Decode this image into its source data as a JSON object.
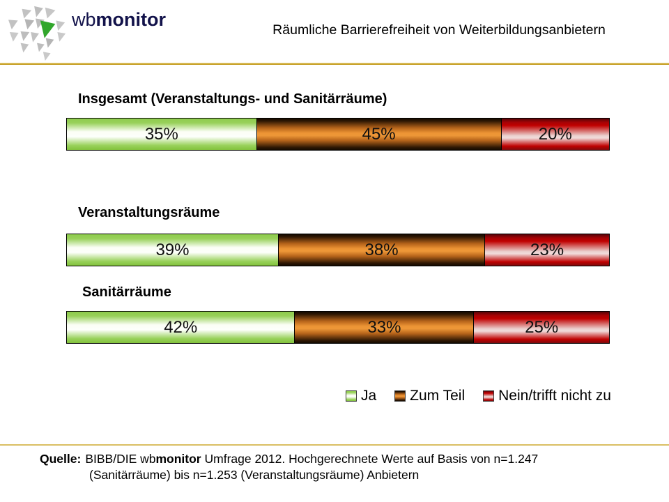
{
  "header": {
    "logo_wb": "wb",
    "logo_monitor": "monitor",
    "title": "Räumliche Barrierefreiheit von Weiterbildungsanbietern"
  },
  "chart_data": {
    "type": "bar",
    "orientation": "horizontal",
    "stacked": true,
    "unit": "percent",
    "categories": [
      "Insgesamt (Veranstaltungs- und Sanitärräume)",
      "Veranstaltungsräume",
      "Sanitärräume"
    ],
    "series": [
      {
        "name": "Ja",
        "color": "#92D050",
        "values": [
          35,
          39,
          42
        ]
      },
      {
        "name": "Zum Teil",
        "color": "#E8882A",
        "values": [
          45,
          38,
          33
        ]
      },
      {
        "name": "Nein/trifft nicht zu",
        "color": "#C00000",
        "values": [
          20,
          23,
          25
        ]
      }
    ],
    "xlim": [
      0,
      100
    ],
    "grid": false,
    "legend_position": "bottom-right"
  },
  "rows": [
    {
      "label": "Insgesamt (Veranstaltungs- und Sanitärräume)",
      "segments": [
        {
          "label": "35%"
        },
        {
          "label": "45%"
        },
        {
          "label": "20%"
        }
      ]
    },
    {
      "label": "Veranstaltungsräume",
      "segments": [
        {
          "label": "39%"
        },
        {
          "label": "38%"
        },
        {
          "label": "23%"
        }
      ]
    },
    {
      "label": "Sanitärräume",
      "segments": [
        {
          "label": "42%"
        },
        {
          "label": "33%"
        },
        {
          "label": "25%"
        }
      ]
    }
  ],
  "legend": {
    "items": [
      {
        "label": "Ja",
        "swatch": "green"
      },
      {
        "label": "Zum Teil",
        "swatch": "orange"
      },
      {
        "label": "Nein/trifft nicht zu",
        "swatch": "red"
      }
    ]
  },
  "footer": {
    "source_label": "Quelle:",
    "line1_pre": "BIBB/DIE wb",
    "line1_bold": "monitor",
    "line1_post": " Umfrage 2012. Hochgerechnete Werte auf Basis von n=1.247",
    "line2": "(Sanitärräume) bis n=1.253 (Veranstaltungsräume) Anbietern"
  },
  "colors": {
    "accent_gold": "#C7A22C",
    "logo_navy": "#12124A",
    "logo_green": "#31A62B",
    "bar_green": "#92D050",
    "bar_orange": "#E8882A",
    "bar_red": "#C00000"
  }
}
